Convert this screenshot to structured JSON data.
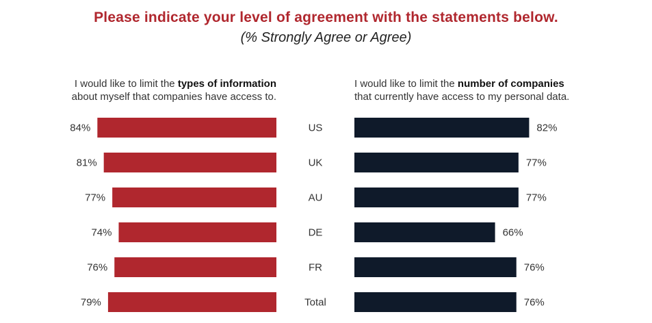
{
  "title": "Please indicate your level of agreement with the statements below.",
  "subtitle": "(% Strongly Agree or Agree)",
  "left_label": {
    "pre": "I would like to limit the ",
    "bold": "types of information",
    "post": "about myself that companies have access to."
  },
  "right_label": {
    "pre": "I would like to limit the ",
    "bold": "number of companies",
    "post": "that currently have access to my personal data."
  },
  "colors": {
    "left_bar": "#b0272e",
    "right_bar": "#0f1a2a",
    "title": "#b0272e"
  },
  "chart_data": {
    "type": "bar",
    "categories": [
      "US",
      "UK",
      "AU",
      "DE",
      "FR",
      "Total"
    ],
    "series": [
      {
        "values": [
          84,
          81,
          77,
          74,
          76,
          79
        ]
      },
      {
        "values": [
          82,
          77,
          77,
          66,
          76,
          76
        ]
      }
    ],
    "value_suffix": "%",
    "title": "Please indicate your level of agreement with the statements below.",
    "subtitle": "(% Strongly Agree or Agree)"
  }
}
